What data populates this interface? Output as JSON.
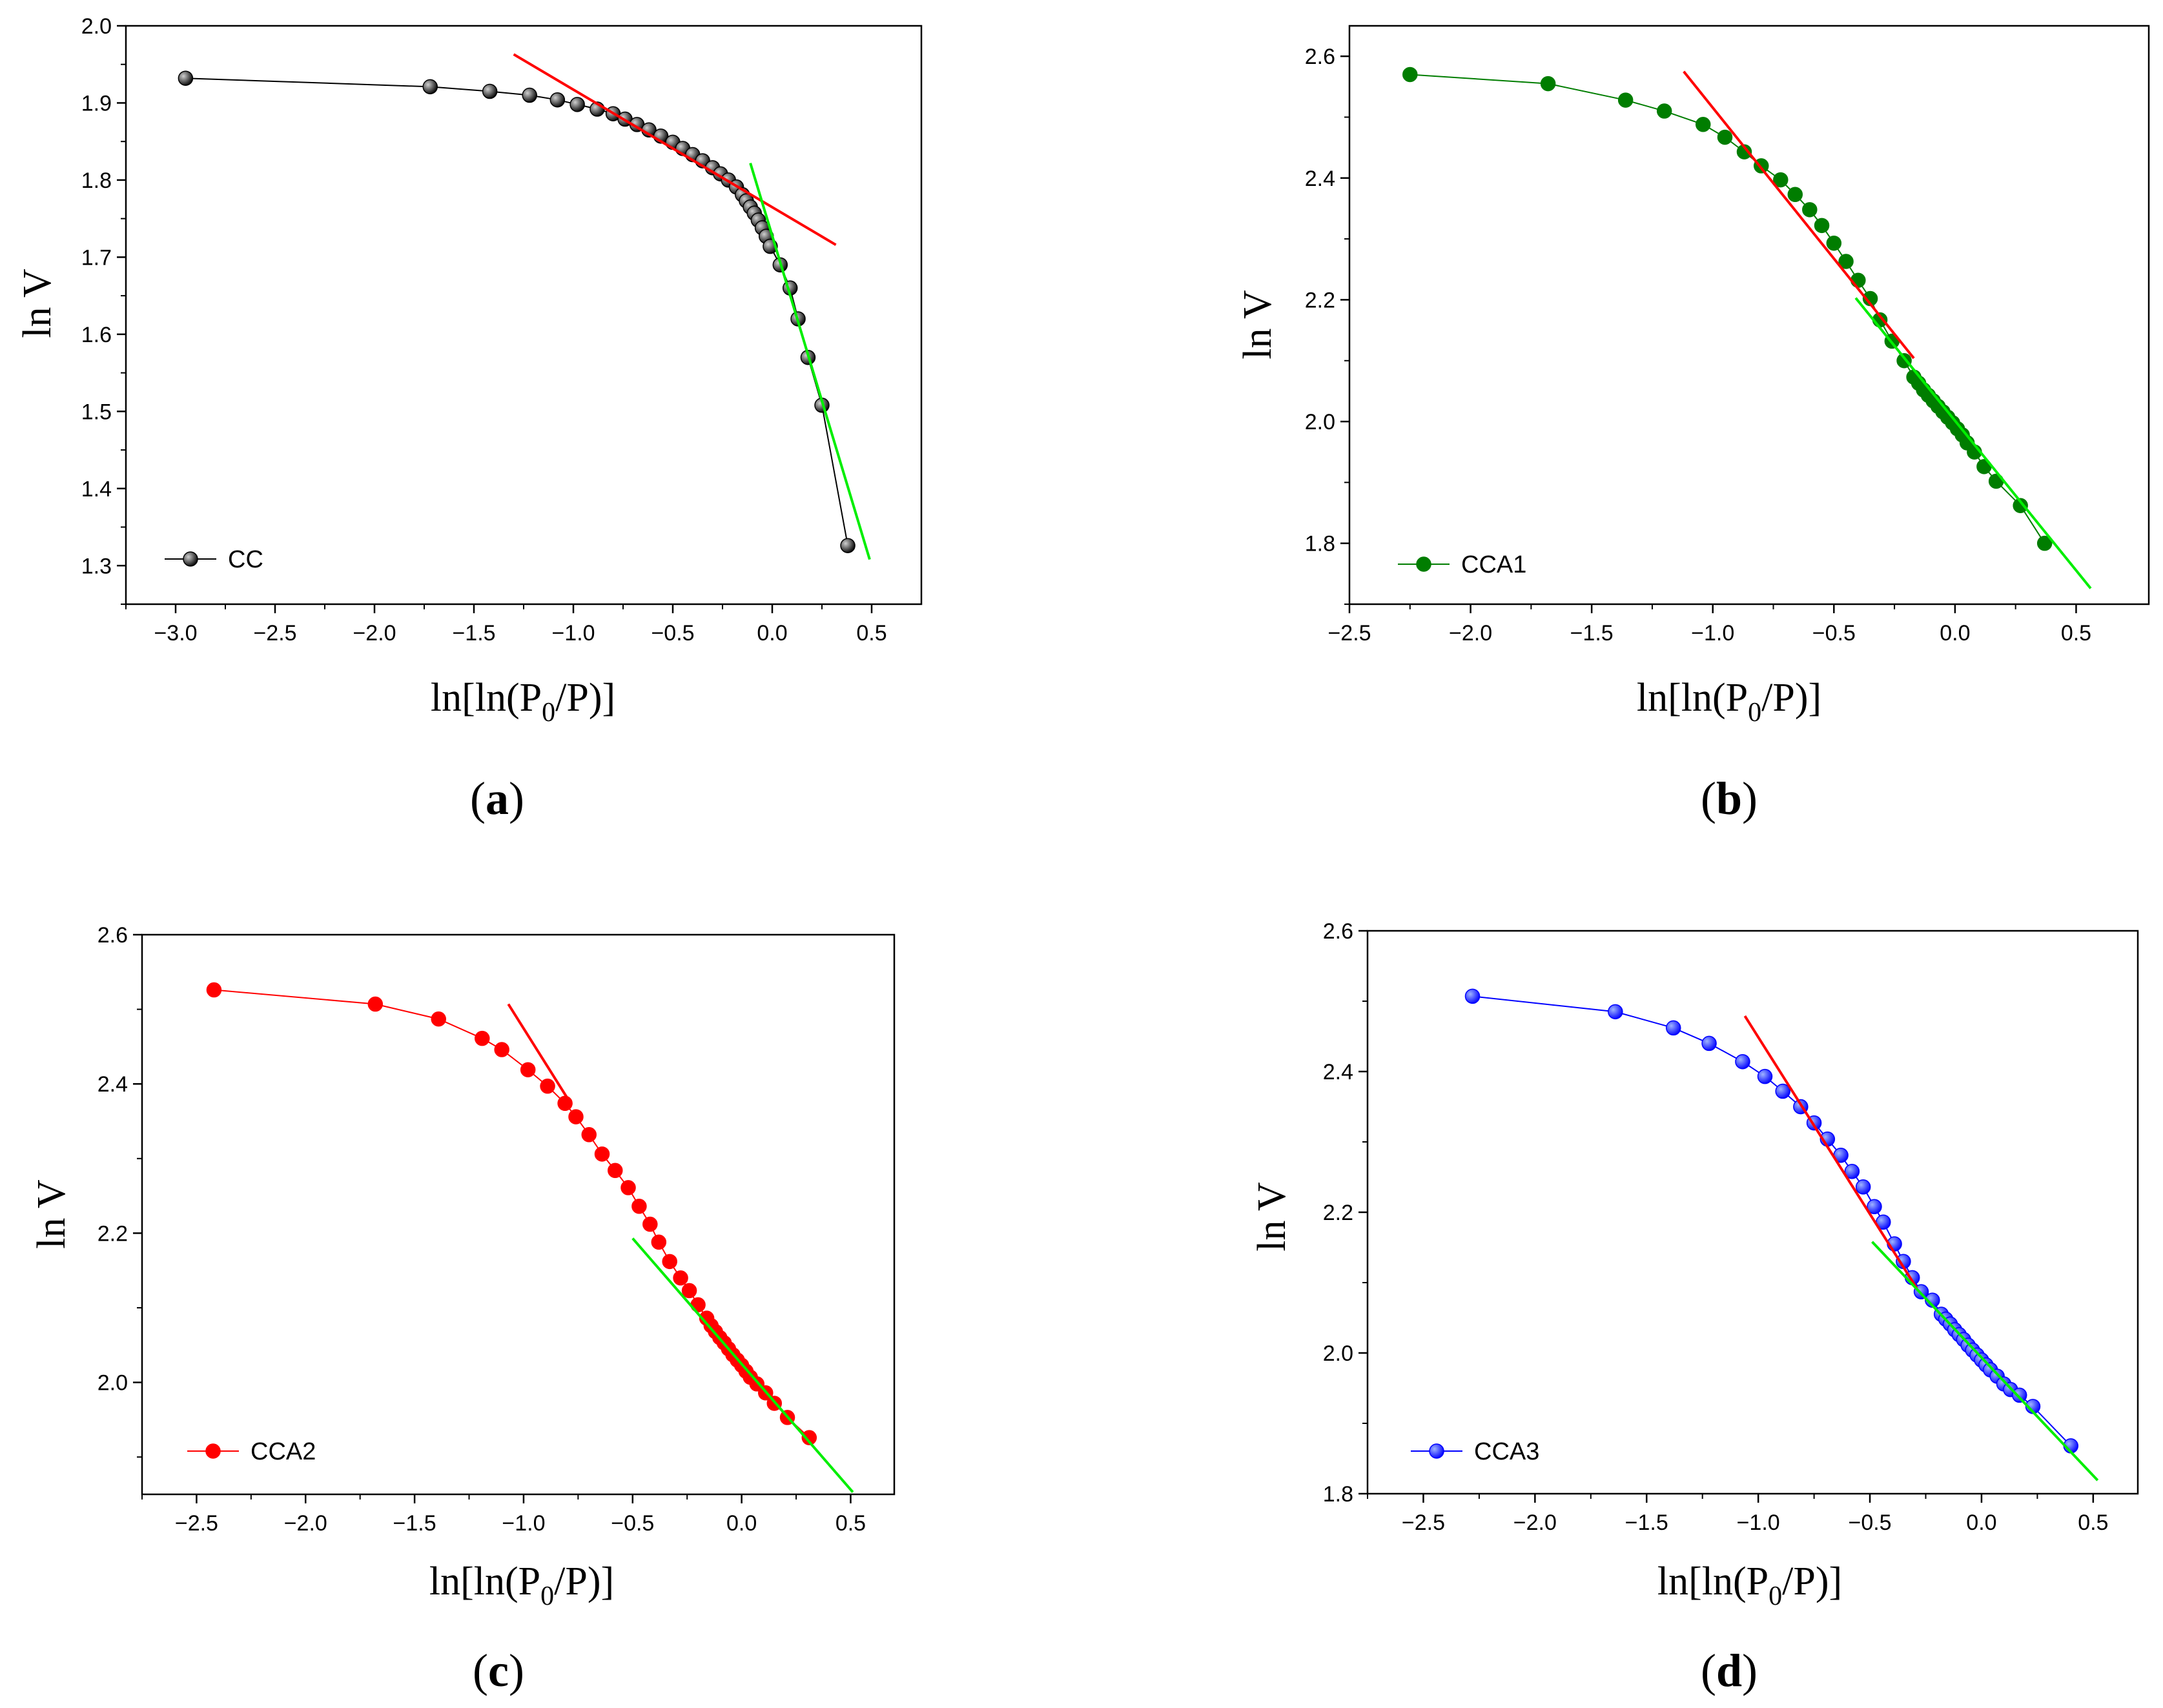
{
  "chart_data": [
    {
      "panel": "a",
      "type": "scatter",
      "caption": {
        "open": "(",
        "letter": "a",
        "close": ")"
      },
      "xlabel": {
        "prefix": "ln[ln(P",
        "sub": "0",
        "suffix": "/P)]"
      },
      "ylabel": "ln V",
      "xlim": [
        -3.25,
        0.75
      ],
      "ylim": [
        1.25,
        2.0
      ],
      "xticks": [
        -3.0,
        -2.5,
        -2.0,
        -1.5,
        -1.0,
        -0.5,
        0.0,
        0.5
      ],
      "xtick_labels": [
        "−3.0",
        "−2.5",
        "−2.0",
        "−1.5",
        "−1.0",
        "−0.5",
        "0.0",
        "0.5"
      ],
      "yticks": [
        1.3,
        1.4,
        1.5,
        1.6,
        1.7,
        1.8,
        1.9,
        2.0
      ],
      "ytick_labels": [
        "1.3",
        "1.4",
        "1.5",
        "1.6",
        "1.7",
        "1.8",
        "1.9",
        "2.0"
      ],
      "series": [
        {
          "name": "CC",
          "color": "#000000",
          "highlight": "#d0d0d0",
          "x": [
            -2.95,
            -1.72,
            -1.42,
            -1.22,
            -1.08,
            -0.98,
            -0.88,
            -0.8,
            -0.74,
            -0.68,
            -0.62,
            -0.56,
            -0.5,
            -0.45,
            -0.4,
            -0.35,
            -0.3,
            -0.26,
            -0.22,
            -0.18,
            -0.15,
            -0.13,
            -0.11,
            -0.09,
            -0.07,
            -0.05,
            -0.03,
            -0.01,
            0.04,
            0.09,
            0.13,
            0.18,
            0.25,
            0.38
          ],
          "y": [
            1.932,
            1.921,
            1.915,
            1.91,
            1.904,
            1.898,
            1.892,
            1.886,
            1.879,
            1.872,
            1.865,
            1.857,
            1.849,
            1.841,
            1.833,
            1.825,
            1.816,
            1.808,
            1.8,
            1.791,
            1.781,
            1.773,
            1.765,
            1.757,
            1.748,
            1.738,
            1.727,
            1.714,
            1.69,
            1.66,
            1.62,
            1.57,
            1.508,
            1.326
          ]
        }
      ],
      "fits": [
        {
          "color": "#ff0000",
          "x": [
            -1.3,
            0.32
          ],
          "y": [
            1.963,
            1.716
          ]
        },
        {
          "color": "#00ee00",
          "x": [
            -0.11,
            0.49
          ],
          "y": [
            1.822,
            1.308
          ]
        }
      ],
      "legend": "bottom-left"
    },
    {
      "panel": "b",
      "type": "scatter",
      "caption": {
        "open": "(",
        "letter": "b",
        "close": ")"
      },
      "xlabel": {
        "prefix": "ln[ln(P",
        "sub": "0",
        "suffix": "/P)]"
      },
      "ylabel": "ln V",
      "xlim": [
        -2.5,
        0.8
      ],
      "ylim": [
        1.7,
        2.65
      ],
      "xticks": [
        -2.5,
        -2.0,
        -1.5,
        -1.0,
        -0.5,
        0.0,
        0.5
      ],
      "xtick_labels": [
        "−2.5",
        "−2.0",
        "−1.5",
        "−1.0",
        "−0.5",
        "0.0",
        "0.5"
      ],
      "yticks": [
        1.8,
        2.0,
        2.2,
        2.4,
        2.6
      ],
      "ytick_labels": [
        "1.8",
        "2.0",
        "2.2",
        "2.4",
        "2.6"
      ],
      "series": [
        {
          "name": "CCA1",
          "color": "#007d00",
          "highlight": "#007d00",
          "x": [
            -2.25,
            -1.68,
            -1.36,
            -1.2,
            -1.04,
            -0.95,
            -0.87,
            -0.8,
            -0.72,
            -0.66,
            -0.6,
            -0.55,
            -0.5,
            -0.45,
            -0.4,
            -0.35,
            -0.31,
            -0.26,
            -0.21,
            -0.17,
            -0.15,
            -0.13,
            -0.11,
            -0.09,
            -0.07,
            -0.05,
            -0.03,
            -0.01,
            0.01,
            0.03,
            0.05,
            0.08,
            0.12,
            0.17,
            0.27,
            0.37
          ],
          "y": [
            2.57,
            2.555,
            2.528,
            2.51,
            2.488,
            2.467,
            2.443,
            2.42,
            2.397,
            2.373,
            2.348,
            2.322,
            2.293,
            2.263,
            2.232,
            2.202,
            2.167,
            2.132,
            2.1,
            2.073,
            2.063,
            2.052,
            2.043,
            2.034,
            2.025,
            2.016,
            2.007,
            1.998,
            1.988,
            1.978,
            1.965,
            1.95,
            1.926,
            1.902,
            1.862,
            1.8
          ]
        }
      ],
      "fits": [
        {
          "color": "#ff0000",
          "x": [
            -1.12,
            -0.17
          ],
          "y": [
            2.575,
            2.104
          ]
        },
        {
          "color": "#00ee00",
          "x": [
            -0.41,
            0.56
          ],
          "y": [
            2.203,
            1.726
          ]
        }
      ],
      "legend": "bottom-left"
    },
    {
      "panel": "c",
      "type": "scatter",
      "caption": {
        "open": "(",
        "letter": "c",
        "close": ")"
      },
      "xlabel": {
        "prefix": "ln[ln(P",
        "sub": "0",
        "suffix": "/P)]"
      },
      "ylabel": "ln V",
      "xlim": [
        -2.75,
        0.7
      ],
      "ylim": [
        1.85,
        2.6
      ],
      "xticks": [
        -2.5,
        -2.0,
        -1.5,
        -1.0,
        -0.5,
        0.0,
        0.5
      ],
      "xtick_labels": [
        "−2.5",
        "−2.0",
        "−1.5",
        "−1.0",
        "−0.5",
        "0.0",
        "0.5"
      ],
      "yticks": [
        2.0,
        2.2,
        2.4,
        2.6
      ],
      "ytick_labels": [
        "2.0",
        "2.2",
        "2.4",
        "2.6"
      ],
      "series": [
        {
          "name": "CCA2",
          "color": "#ff0000",
          "highlight": "#ff0000",
          "x": [
            -2.42,
            -1.68,
            -1.39,
            -1.19,
            -1.1,
            -0.98,
            -0.89,
            -0.81,
            -0.76,
            -0.7,
            -0.64,
            -0.58,
            -0.52,
            -0.47,
            -0.42,
            -0.38,
            -0.33,
            -0.28,
            -0.24,
            -0.2,
            -0.16,
            -0.14,
            -0.12,
            -0.1,
            -0.08,
            -0.06,
            -0.04,
            -0.02,
            0.0,
            0.02,
            0.04,
            0.07,
            0.11,
            0.15,
            0.21,
            0.31
          ],
          "y": [
            2.526,
            2.507,
            2.487,
            2.461,
            2.446,
            2.419,
            2.397,
            2.374,
            2.356,
            2.332,
            2.306,
            2.284,
            2.261,
            2.236,
            2.212,
            2.188,
            2.162,
            2.14,
            2.123,
            2.104,
            2.086,
            2.076,
            2.068,
            2.06,
            2.053,
            2.045,
            2.037,
            2.03,
            2.023,
            2.015,
            2.007,
            1.998,
            1.986,
            1.972,
            1.953,
            1.926
          ]
        }
      ],
      "fits": [
        {
          "color": "#ff0000",
          "x": [
            -1.07,
            -0.78
          ],
          "y": [
            2.507,
            2.372
          ]
        },
        {
          "color": "#00ee00",
          "x": [
            -0.5,
            0.51
          ],
          "y": [
            2.193,
            1.853
          ]
        }
      ],
      "legend": "bottom-left"
    },
    {
      "panel": "d",
      "type": "scatter",
      "caption": {
        "open": "(",
        "letter": "d",
        "close": ")"
      },
      "xlabel": {
        "prefix": "ln[ln(P",
        "sub": "0",
        "suffix": "/P)]"
      },
      "ylabel": "ln V",
      "xlim": [
        -2.75,
        0.7
      ],
      "ylim": [
        1.8,
        2.6
      ],
      "xticks": [
        -2.5,
        -2.0,
        -1.5,
        -1.0,
        -0.5,
        0.0,
        0.5
      ],
      "xtick_labels": [
        "−2.5",
        "−2.0",
        "−1.5",
        "−1.0",
        "−0.5",
        "0.0",
        "0.5"
      ],
      "yticks": [
        1.8,
        2.0,
        2.2,
        2.4,
        2.6
      ],
      "ytick_labels": [
        "1.8",
        "2.0",
        "2.2",
        "2.4",
        "2.6"
      ],
      "series": [
        {
          "name": "CCA3",
          "color": "#0000ff",
          "highlight": "#9fb4ff",
          "x": [
            -2.28,
            -1.64,
            -1.38,
            -1.22,
            -1.07,
            -0.97,
            -0.89,
            -0.81,
            -0.75,
            -0.69,
            -0.63,
            -0.58,
            -0.53,
            -0.48,
            -0.44,
            -0.39,
            -0.35,
            -0.31,
            -0.27,
            -0.22,
            -0.18,
            -0.16,
            -0.14,
            -0.12,
            -0.1,
            -0.08,
            -0.06,
            -0.04,
            -0.02,
            0.0,
            0.02,
            0.04,
            0.07,
            0.1,
            0.13,
            0.17,
            0.23,
            0.4
          ],
          "y": [
            2.507,
            2.485,
            2.462,
            2.44,
            2.414,
            2.393,
            2.372,
            2.35,
            2.327,
            2.304,
            2.281,
            2.258,
            2.236,
            2.208,
            2.186,
            2.155,
            2.13,
            2.107,
            2.087,
            2.075,
            2.055,
            2.048,
            2.041,
            2.033,
            2.026,
            2.019,
            2.011,
            2.004,
            1.997,
            1.99,
            1.983,
            1.976,
            1.967,
            1.956,
            1.948,
            1.94,
            1.924,
            1.868
          ]
        }
      ],
      "fits": [
        {
          "color": "#ff0000",
          "x": [
            -1.06,
            -0.29
          ],
          "y": [
            2.479,
            2.092
          ]
        },
        {
          "color": "#00ee00",
          "x": [
            -0.49,
            0.52
          ],
          "y": [
            2.158,
            1.819
          ]
        }
      ],
      "legend": "bottom-left"
    }
  ]
}
